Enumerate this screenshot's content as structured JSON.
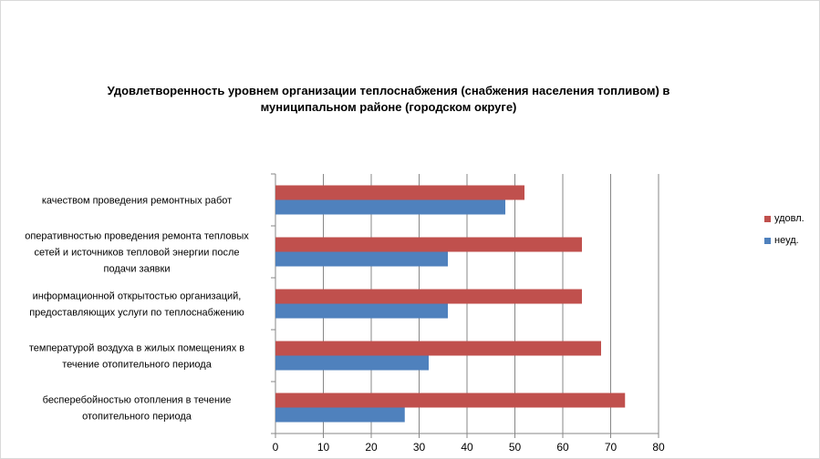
{
  "chart_data": {
    "type": "bar",
    "orientation": "horizontal",
    "title_lines": [
      "Удовлетворенность уровнем организации теплоснабжения (снабжения населения топливом) в",
      "муниципальном районе (городском округе)"
    ],
    "categories": [
      [
        "качеством проведения ремонтных работ"
      ],
      [
        "оперативностью проведения ремонта тепловых",
        "сетей и источников тепловой энергии после",
        "подачи заявки"
      ],
      [
        "информационной открытостью организаций,",
        "предоставляющих услуги по теплоснабжению"
      ],
      [
        "температурой воздуха в жилых помещениях в",
        "течение отопительного периода"
      ],
      [
        "бесперебойностью отопления в течение",
        "отопительного периода"
      ]
    ],
    "series": [
      {
        "name": "удовл.",
        "color": "#c0504d",
        "values": [
          52,
          64,
          64,
          68,
          73
        ]
      },
      {
        "name": "неуд.",
        "color": "#4f81bd",
        "values": [
          48,
          36,
          36,
          32,
          27
        ]
      }
    ],
    "xlim": [
      0,
      80
    ],
    "xticks": [
      0,
      10,
      20,
      30,
      40,
      50,
      60,
      70,
      80
    ],
    "grid": true,
    "legend_position": "right"
  }
}
